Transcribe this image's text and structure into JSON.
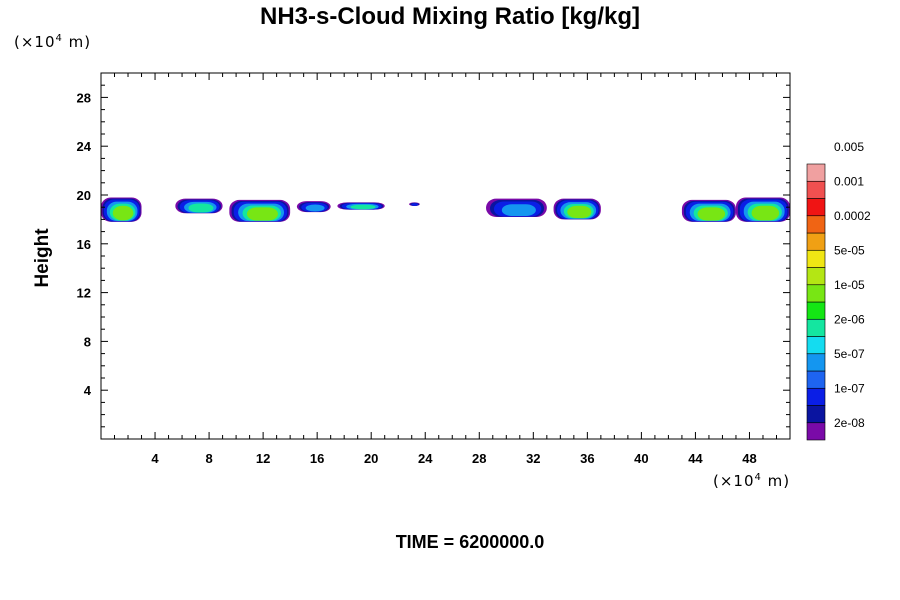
{
  "chart_data": {
    "type": "heatmap",
    "title": "NH3-s-Cloud Mixing Ratio [kg/kg]",
    "ylabel": "Height",
    "xlabel": "",
    "x_unit": "(×10",
    "x_unit_exp": "4",
    "x_unit_tail": " m)",
    "y_unit": "(×10",
    "y_unit_exp": "4",
    "y_unit_tail": " m)",
    "xlim": [
      0,
      51
    ],
    "ylim": [
      0,
      30
    ],
    "x_ticks": [
      4,
      8,
      12,
      16,
      20,
      24,
      28,
      32,
      36,
      40,
      44,
      48
    ],
    "y_ticks": [
      4,
      8,
      12,
      16,
      20,
      24,
      28
    ],
    "grid": false,
    "colorbar": {
      "labels": [
        "2e-08",
        "1e-07",
        "5e-07",
        "2e-06",
        "1e-05",
        "5e-05",
        "0.0002",
        "0.001",
        "0.005"
      ],
      "colors": [
        "#7a0aa8",
        "#0a14a0",
        "#0a1ee6",
        "#1e64f0",
        "#1496f0",
        "#14dcf0",
        "#14e6a0",
        "#14e614",
        "#78e614",
        "#b4e614",
        "#f0e614",
        "#f0a014",
        "#f06414",
        "#f01414",
        "#f05050",
        "#f0a0a0"
      ]
    },
    "cloud_segments": [
      {
        "x": [
          0,
          3
        ],
        "y": [
          17.8,
          19.8
        ],
        "peak": "1e-05"
      },
      {
        "x": [
          5.5,
          9
        ],
        "y": [
          18.5,
          19.7
        ],
        "peak": "2e-06"
      },
      {
        "x": [
          9.5,
          14
        ],
        "y": [
          17.8,
          19.6
        ],
        "peak": "1e-05"
      },
      {
        "x": [
          14.5,
          17
        ],
        "y": [
          18.6,
          19.5
        ],
        "peak": "5e-07"
      },
      {
        "x": [
          17.5,
          21
        ],
        "y": [
          18.8,
          19.4
        ],
        "peak": "2e-06"
      },
      {
        "x": [
          22.8,
          23.6
        ],
        "y": [
          19.1,
          19.4
        ],
        "peak": "1e-07"
      },
      {
        "x": [
          28.5,
          33
        ],
        "y": [
          18.2,
          19.7
        ],
        "peak": "5e-07"
      },
      {
        "x": [
          33.5,
          37
        ],
        "y": [
          18.0,
          19.7
        ],
        "peak": "1e-05"
      },
      {
        "x": [
          43,
          47
        ],
        "y": [
          17.8,
          19.6
        ],
        "peak": "1e-05"
      },
      {
        "x": [
          47,
          51
        ],
        "y": [
          17.8,
          19.8
        ],
        "peak": "1e-05"
      }
    ]
  },
  "time_label": "TIME = 6200000.0"
}
